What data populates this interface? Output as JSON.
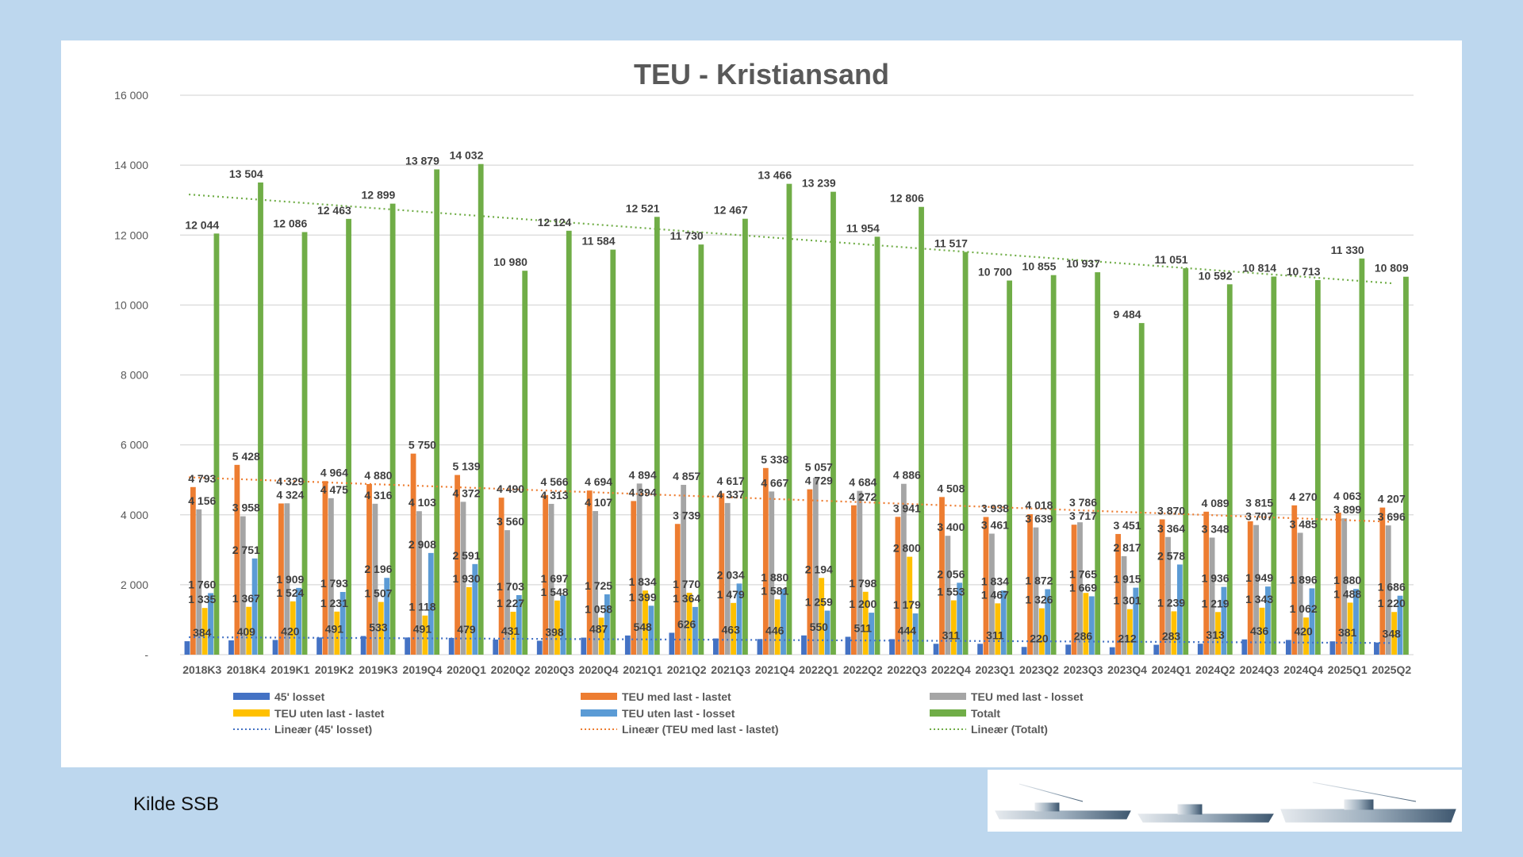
{
  "source_label": "Kilde SSB",
  "chart_data": {
    "type": "bar",
    "title": "TEU - Kristiansand",
    "xlabel": "",
    "ylabel": "",
    "ylim": [
      0,
      16000
    ],
    "yticks": [
      0,
      2000,
      4000,
      6000,
      8000,
      10000,
      12000,
      14000,
      16000
    ],
    "ytick_labels": [
      "-",
      "2 000",
      "4 000",
      "6 000",
      "8 000",
      "10 000",
      "12 000",
      "14 000",
      "16 000"
    ],
    "grid": true,
    "legend_position": "bottom",
    "categories": [
      "2018K3",
      "2018K4",
      "2019K1",
      "2019K2",
      "2019K3",
      "2019Q4",
      "2020Q1",
      "2020Q2",
      "2020Q3",
      "2020Q4",
      "2021Q1",
      "2021Q2",
      "2021Q3",
      "2021Q4",
      "2022Q1",
      "2022Q2",
      "2022Q3",
      "2022Q4",
      "2023Q1",
      "2023Q2",
      "2023Q3",
      "2023Q4",
      "2024Q1",
      "2024Q2",
      "2024Q3",
      "2024Q4",
      "2025Q1",
      "2025Q2"
    ],
    "series": [
      {
        "name": "45' losset",
        "color": "#4472c4",
        "values": [
          384,
          409,
          420,
          491,
          533,
          491,
          479,
          431,
          398,
          487,
          548,
          626,
          463,
          446,
          550,
          511,
          444,
          311,
          311,
          220,
          286,
          212,
          283,
          313,
          436,
          420,
          381,
          348
        ]
      },
      {
        "name": "TEU med last - lastet",
        "color": "#ed7d31",
        "values": [
          4793,
          5428,
          4324,
          4964,
          4880,
          5750,
          5139,
          4490,
          4566,
          4694,
          4394,
          3739,
          4617,
          5338,
          4729,
          4272,
          3941,
          4508,
          3938,
          4018,
          3717,
          3451,
          3870,
          4089,
          3815,
          4270,
          4063,
          4207
        ]
      },
      {
        "name": "TEU med last - losset",
        "color": "#a5a5a5",
        "values": [
          4156,
          3958,
          4329,
          4475,
          4316,
          4103,
          4372,
          3560,
          4313,
          4107,
          4894,
          4857,
          4337,
          4667,
          5057,
          4684,
          4886,
          3400,
          3461,
          3639,
          3786,
          2817,
          3364,
          3348,
          3707,
          3485,
          3899,
          3696
        ]
      },
      {
        "name": "TEU uten last - lastet",
        "color": "#ffc000",
        "values": [
          1335,
          1367,
          1524,
          1231,
          1507,
          1118,
          1930,
          1227,
          1548,
          1058,
          1834,
          1770,
          1479,
          1581,
          2194,
          1798,
          2800,
          1553,
          1467,
          1326,
          1765,
          1301,
          1239,
          1219,
          1343,
          1062,
          1488,
          1220
        ]
      },
      {
        "name": "TEU uten last - losset",
        "color": "#5b9bd5",
        "values": [
          1760,
          2751,
          1909,
          1793,
          2196,
          2908,
          2591,
          1703,
          1697,
          1725,
          1399,
          1364,
          2034,
          1880,
          1259,
          1200,
          1179,
          2056,
          1834,
          1872,
          1669,
          1915,
          2578,
          1936,
          1949,
          1896,
          1880,
          1686
        ]
      },
      {
        "name": "Totalt",
        "color": "#70ad47",
        "values": [
          12044,
          13504,
          12086,
          12463,
          12899,
          13879,
          14032,
          10980,
          12124,
          11584,
          12521,
          11730,
          12467,
          13466,
          13239,
          11954,
          12806,
          11517,
          10700,
          10855,
          10937,
          9484,
          11051,
          10592,
          10814,
          10713,
          11330,
          10809
        ]
      }
    ],
    "trendlines": [
      {
        "name": "Lineær (45' losset)",
        "series": 0,
        "color": "#4472c4"
      },
      {
        "name": "Lineær (TEU med last - lastet)",
        "series": 1,
        "color": "#ed7d31"
      },
      {
        "name": "Lineær (Totalt)",
        "series": 5,
        "color": "#70ad47"
      }
    ],
    "legend": [
      "45' losset",
      "TEU med last - lastet",
      "TEU med last - losset",
      "TEU uten last - lastet",
      "TEU uten last - losset",
      "Totalt",
      "Lineær (45' losset)",
      "Lineær (TEU med last - lastet)",
      "Lineær (Totalt)"
    ]
  }
}
